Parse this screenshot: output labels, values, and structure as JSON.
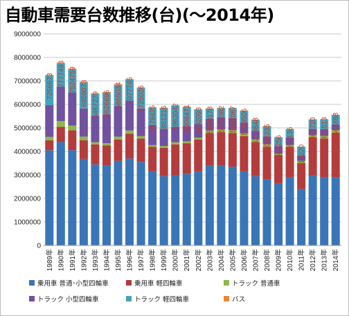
{
  "chart_data": {
    "type": "bar",
    "stacked": true,
    "title": "自動車需要台数推移(台)(～2014年)",
    "categories": [
      "1989年",
      "1990年",
      "1991年",
      "1992年",
      "1993年",
      "1994年",
      "1995年",
      "1996年",
      "1997年",
      "1998年",
      "1999年",
      "2000年",
      "2001年",
      "2002年",
      "2003年",
      "2004年",
      "2005年",
      "2006年",
      "2007年",
      "2008年",
      "2009年",
      "2010年",
      "2011年",
      "2012年",
      "2013年",
      "2014年"
    ],
    "totals": [
      "7256673",
      "7777493",
      "7524759",
      "6959073",
      "6467279",
      "6526696",
      "6865034",
      "7077745",
      "6725026",
      "5879425",
      "5861216",
      "5963042",
      "5906471",
      "5792093",
      "5828178",
      "5853382",
      "5852067",
      "5739506",
      "5353648",
      "5082235",
      "4609256",
      "4956136",
      "4210220",
      "5369720",
      "5375513",
      "5562888"
    ],
    "series": [
      {
        "name": "乗用車 普通･小型四輪車",
        "color": "#3a75b8",
        "values": [
          4050000,
          4400000,
          4050000,
          3680000,
          3450000,
          3400000,
          3600000,
          3700000,
          3550000,
          3150000,
          2950000,
          3000000,
          3050000,
          3150000,
          3400000,
          3400000,
          3350000,
          3150000,
          2950000,
          2800000,
          2650000,
          2900000,
          2400000,
          3000000,
          2900000,
          2900000
        ]
      },
      {
        "name": "乗用車 軽四輪車",
        "color": "#b43c3c",
        "values": [
          420000,
          650000,
          850000,
          800000,
          850000,
          850000,
          900000,
          1050000,
          1000000,
          1050000,
          1200000,
          1300000,
          1300000,
          1350000,
          1380000,
          1420000,
          1430000,
          1500000,
          1450000,
          1400000,
          1200000,
          1300000,
          1100000,
          1600000,
          1650000,
          1900000
        ]
      },
      {
        "name": "トラック 普通車",
        "color": "#8db84a",
        "values": [
          150000,
          240000,
          200000,
          150000,
          90000,
          100000,
          130000,
          140000,
          100000,
          70000,
          80000,
          90000,
          80000,
          80000,
          110000,
          120000,
          130000,
          120000,
          110000,
          100000,
          50000,
          80000,
          100000,
          100000,
          110000,
          110000
        ]
      },
      {
        "name": "トラック 小型四輪車",
        "color": "#7052a0",
        "values": [
          1350000,
          1460000,
          1400000,
          1200000,
          1130000,
          1230000,
          1300000,
          1270000,
          1180000,
          850000,
          730000,
          660000,
          650000,
          580000,
          500000,
          520000,
          510000,
          450000,
          360000,
          340000,
          330000,
          310000,
          230000,
          260000,
          280000,
          240000
        ]
      },
      {
        "name": "トラック 軽四輪車",
        "color": "#46a3bd",
        "values": [
          1250000,
          990000,
          990000,
          1100000,
          920000,
          920000,
          900000,
          900000,
          860000,
          740000,
          880000,
          900000,
          810000,
          620000,
          420000,
          380000,
          420000,
          500000,
          470000,
          430000,
          370000,
          350000,
          370000,
          400000,
          420000,
          400000
        ]
      },
      {
        "name": "バス",
        "color": "#e8873a",
        "values": [
          36673,
          37493,
          34759,
          29073,
          27279,
          26696,
          35034,
          17745,
          35026,
          19425,
          21216,
          13042,
          16471,
          12093,
          18178,
          13382,
          12067,
          19506,
          13648,
          12235,
          9256,
          16136,
          10220,
          9720,
          15513,
          12888
        ]
      }
    ],
    "ylim": [
      0,
      9000000
    ],
    "yticks": [
      "0",
      "1000000",
      "2000000",
      "3000000",
      "4000000",
      "5000000",
      "6000000",
      "7000000",
      "8000000",
      "9000000"
    ],
    "grid": true,
    "legend_position": "bottom"
  }
}
